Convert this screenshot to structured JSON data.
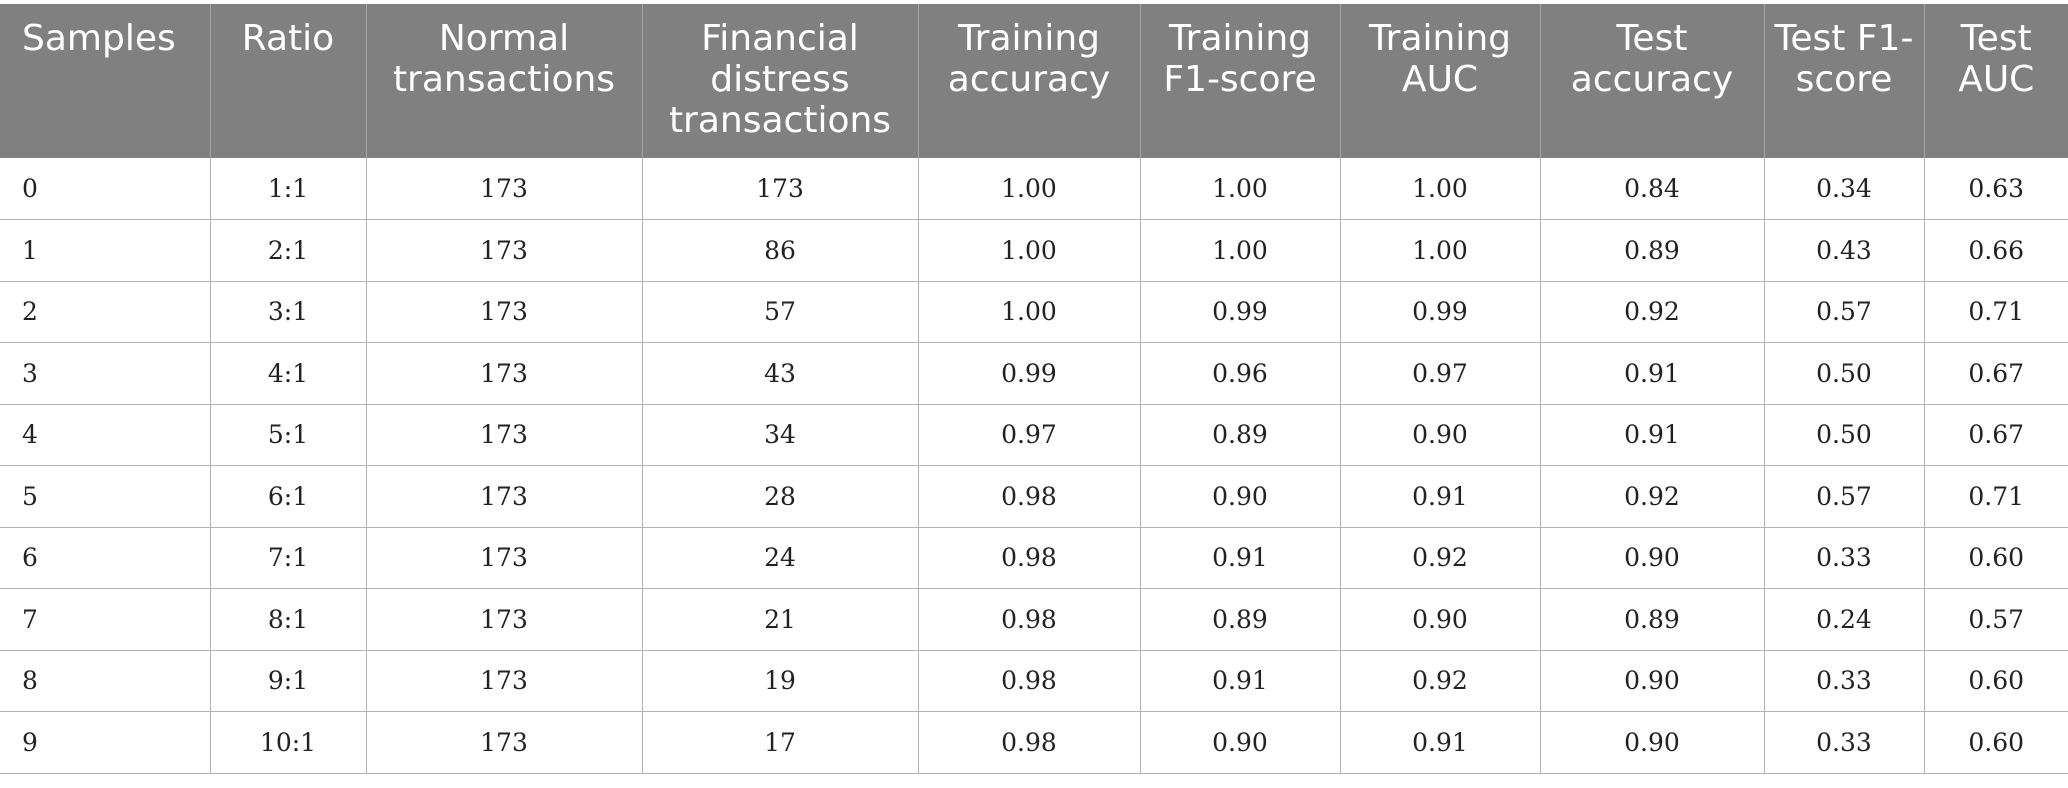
{
  "table": {
    "headers": [
      "Samples",
      "Ratio",
      "Normal transactions",
      "Financial distress transactions",
      "Training accuracy",
      "Training F1-score",
      "Training AUC",
      "Test accuracy",
      "Test F1-score",
      "Test AUC"
    ],
    "rows": [
      [
        "0",
        "1:1",
        "173",
        "173",
        "1.00",
        "1.00",
        "1.00",
        "0.84",
        "0.34",
        "0.63"
      ],
      [
        "1",
        "2:1",
        "173",
        "86",
        "1.00",
        "1.00",
        "1.00",
        "0.89",
        "0.43",
        "0.66"
      ],
      [
        "2",
        "3:1",
        "173",
        "57",
        "1.00",
        "0.99",
        "0.99",
        "0.92",
        "0.57",
        "0.71"
      ],
      [
        "3",
        "4:1",
        "173",
        "43",
        "0.99",
        "0.96",
        "0.97",
        "0.91",
        "0.50",
        "0.67"
      ],
      [
        "4",
        "5:1",
        "173",
        "34",
        "0.97",
        "0.89",
        "0.90",
        "0.91",
        "0.50",
        "0.67"
      ],
      [
        "5",
        "6:1",
        "173",
        "28",
        "0.98",
        "0.90",
        "0.91",
        "0.92",
        "0.57",
        "0.71"
      ],
      [
        "6",
        "7:1",
        "173",
        "24",
        "0.98",
        "0.91",
        "0.92",
        "0.90",
        "0.33",
        "0.60"
      ],
      [
        "7",
        "8:1",
        "173",
        "21",
        "0.98",
        "0.89",
        "0.90",
        "0.89",
        "0.24",
        "0.57"
      ],
      [
        "8",
        "9:1",
        "173",
        "19",
        "0.98",
        "0.91",
        "0.92",
        "0.90",
        "0.33",
        "0.60"
      ],
      [
        "9",
        "10:1",
        "173",
        "17",
        "0.98",
        "0.90",
        "0.91",
        "0.90",
        "0.33",
        "0.60"
      ]
    ],
    "colors": {
      "header_background": "#808080",
      "header_text": "#ffffff",
      "grid_line": "#b3b3b3"
    }
  }
}
